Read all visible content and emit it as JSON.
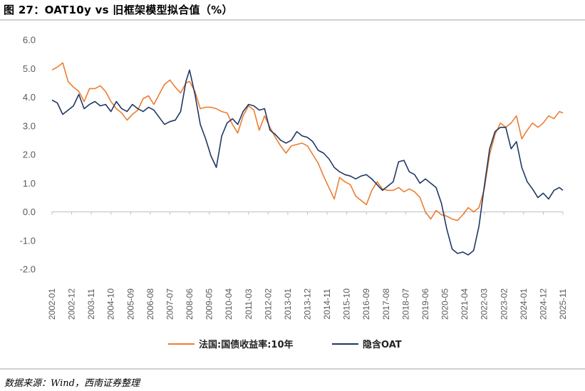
{
  "figure_title": "图 27：OAT10y vs 旧框架模型拟合值（%）",
  "source_note": "数据来源：Wind，西南证券整理",
  "chart_data": {
    "type": "line",
    "title": "",
    "xlabel": "",
    "ylabel": "",
    "ylim": [
      -2.0,
      6.0
    ],
    "yticks": [
      "6.0",
      "5.0",
      "4.0",
      "3.0",
      "2.0",
      "1.0",
      "0.0",
      "-1.0",
      "-2.0"
    ],
    "xticks": [
      "2002-01",
      "2002-12",
      "2003-11",
      "2004-10",
      "2005-09",
      "2006-08",
      "2007-07",
      "2008-06",
      "2009-05",
      "2010-04",
      "2011-03",
      "2012-02",
      "2013-01",
      "2013-12",
      "2014-11",
      "2015-10",
      "2016-09",
      "2017-08",
      "2018-07",
      "2019-06",
      "2020-05",
      "2021-04",
      "2022-03",
      "2023-02",
      "2024-01",
      "2024-12",
      "2025-11"
    ],
    "grid": false,
    "legend_position": "bottom",
    "series": [
      {
        "name": "法国:国债收益率:10年",
        "color": "#ED7D31",
        "x": [
          "2002-01",
          "2002-04",
          "2002-07",
          "2002-10",
          "2003-01",
          "2003-04",
          "2003-07",
          "2003-10",
          "2004-01",
          "2004-04",
          "2004-07",
          "2004-10",
          "2005-01",
          "2005-04",
          "2005-07",
          "2005-10",
          "2006-01",
          "2006-04",
          "2006-07",
          "2006-10",
          "2007-01",
          "2007-04",
          "2007-07",
          "2007-10",
          "2008-01",
          "2008-04",
          "2008-06",
          "2008-09",
          "2008-12",
          "2009-03",
          "2009-06",
          "2009-09",
          "2009-12",
          "2010-03",
          "2010-06",
          "2010-09",
          "2010-12",
          "2011-03",
          "2011-06",
          "2011-09",
          "2011-12",
          "2012-03",
          "2012-06",
          "2012-09",
          "2012-12",
          "2013-03",
          "2013-06",
          "2013-09",
          "2013-12",
          "2014-03",
          "2014-06",
          "2014-09",
          "2014-12",
          "2015-03",
          "2015-06",
          "2015-09",
          "2015-12",
          "2016-03",
          "2016-06",
          "2016-09",
          "2016-12",
          "2017-03",
          "2017-06",
          "2017-09",
          "2017-12",
          "2018-03",
          "2018-06",
          "2018-09",
          "2018-12",
          "2019-03",
          "2019-06",
          "2019-09",
          "2019-12",
          "2020-03",
          "2020-06",
          "2020-09",
          "2020-12",
          "2021-03",
          "2021-06",
          "2021-09",
          "2021-12",
          "2022-03",
          "2022-06",
          "2022-09",
          "2022-12",
          "2023-03",
          "2023-06",
          "2023-09",
          "2023-12",
          "2024-03",
          "2024-06",
          "2024-09",
          "2024-12",
          "2025-03",
          "2025-06",
          "2025-09",
          "2025-11"
        ],
        "values": [
          4.95,
          5.05,
          5.2,
          4.55,
          4.35,
          4.2,
          3.85,
          4.3,
          4.3,
          4.4,
          4.2,
          3.85,
          3.6,
          3.45,
          3.2,
          3.4,
          3.55,
          3.95,
          4.05,
          3.75,
          4.1,
          4.45,
          4.6,
          4.35,
          4.15,
          4.5,
          4.55,
          4.2,
          3.6,
          3.65,
          3.65,
          3.6,
          3.5,
          3.45,
          3.05,
          2.75,
          3.35,
          3.7,
          3.55,
          2.85,
          3.35,
          2.95,
          2.6,
          2.3,
          2.05,
          2.3,
          2.35,
          2.4,
          2.3,
          2.0,
          1.7,
          1.25,
          0.85,
          0.45,
          1.2,
          1.05,
          0.95,
          0.55,
          0.4,
          0.25,
          0.75,
          1.05,
          0.8,
          0.75,
          0.75,
          0.85,
          0.7,
          0.8,
          0.7,
          0.5,
          0.0,
          -0.25,
          0.05,
          -0.1,
          -0.15,
          -0.25,
          -0.3,
          -0.1,
          0.15,
          0.0,
          0.15,
          0.8,
          2.0,
          2.7,
          3.1,
          2.95,
          3.1,
          3.35,
          2.55,
          2.85,
          3.1,
          2.95,
          3.1,
          3.35,
          3.25,
          3.5,
          3.45
        ]
      },
      {
        "name": "隐含OAT",
        "color": "#203864",
        "x": [
          "2002-01",
          "2002-04",
          "2002-07",
          "2002-10",
          "2003-01",
          "2003-04",
          "2003-07",
          "2003-10",
          "2004-01",
          "2004-04",
          "2004-07",
          "2004-10",
          "2005-01",
          "2005-04",
          "2005-07",
          "2005-10",
          "2006-01",
          "2006-04",
          "2006-07",
          "2006-10",
          "2007-01",
          "2007-04",
          "2007-07",
          "2007-10",
          "2008-01",
          "2008-04",
          "2008-06",
          "2008-09",
          "2008-12",
          "2009-03",
          "2009-06",
          "2009-09",
          "2009-12",
          "2010-03",
          "2010-06",
          "2010-09",
          "2010-12",
          "2011-03",
          "2011-06",
          "2011-09",
          "2011-12",
          "2012-03",
          "2012-06",
          "2012-09",
          "2012-12",
          "2013-03",
          "2013-06",
          "2013-09",
          "2013-12",
          "2014-03",
          "2014-06",
          "2014-09",
          "2014-12",
          "2015-03",
          "2015-06",
          "2015-09",
          "2015-12",
          "2016-03",
          "2016-06",
          "2016-09",
          "2016-12",
          "2017-03",
          "2017-06",
          "2017-09",
          "2017-12",
          "2018-03",
          "2018-06",
          "2018-09",
          "2018-12",
          "2019-03",
          "2019-06",
          "2019-09",
          "2019-12",
          "2020-03",
          "2020-06",
          "2020-09",
          "2020-12",
          "2021-03",
          "2021-06",
          "2021-09",
          "2021-12",
          "2022-03",
          "2022-06",
          "2022-09",
          "2022-12",
          "2023-03",
          "2023-06",
          "2023-09",
          "2023-12",
          "2024-03",
          "2024-06",
          "2024-09",
          "2024-12",
          "2025-03",
          "2025-06",
          "2025-09",
          "2025-11"
        ],
        "values": [
          3.9,
          3.8,
          3.4,
          3.55,
          3.7,
          4.1,
          3.6,
          3.75,
          3.85,
          3.7,
          3.75,
          3.5,
          3.85,
          3.6,
          3.5,
          3.75,
          3.6,
          3.5,
          3.65,
          3.55,
          3.3,
          3.05,
          3.15,
          3.2,
          3.5,
          4.55,
          4.95,
          4.1,
          3.05,
          2.55,
          1.95,
          1.55,
          2.65,
          3.1,
          3.25,
          3.05,
          3.5,
          3.75,
          3.7,
          3.55,
          3.6,
          2.85,
          2.7,
          2.5,
          2.4,
          2.5,
          2.8,
          2.65,
          2.6,
          2.45,
          2.15,
          2.05,
          1.85,
          1.55,
          1.4,
          1.3,
          1.25,
          1.15,
          1.25,
          1.3,
          1.15,
          0.95,
          0.75,
          0.9,
          1.05,
          1.75,
          1.8,
          1.4,
          1.3,
          1.0,
          1.15,
          1.0,
          0.85,
          0.3,
          -0.6,
          -1.3,
          -1.45,
          -1.4,
          -1.5,
          -1.35,
          -0.5,
          0.9,
          2.2,
          2.8,
          2.95,
          2.95,
          2.2,
          2.45,
          1.55,
          1.05,
          0.8,
          0.5,
          0.65,
          0.45,
          0.75,
          0.85,
          0.75
        ]
      }
    ]
  }
}
